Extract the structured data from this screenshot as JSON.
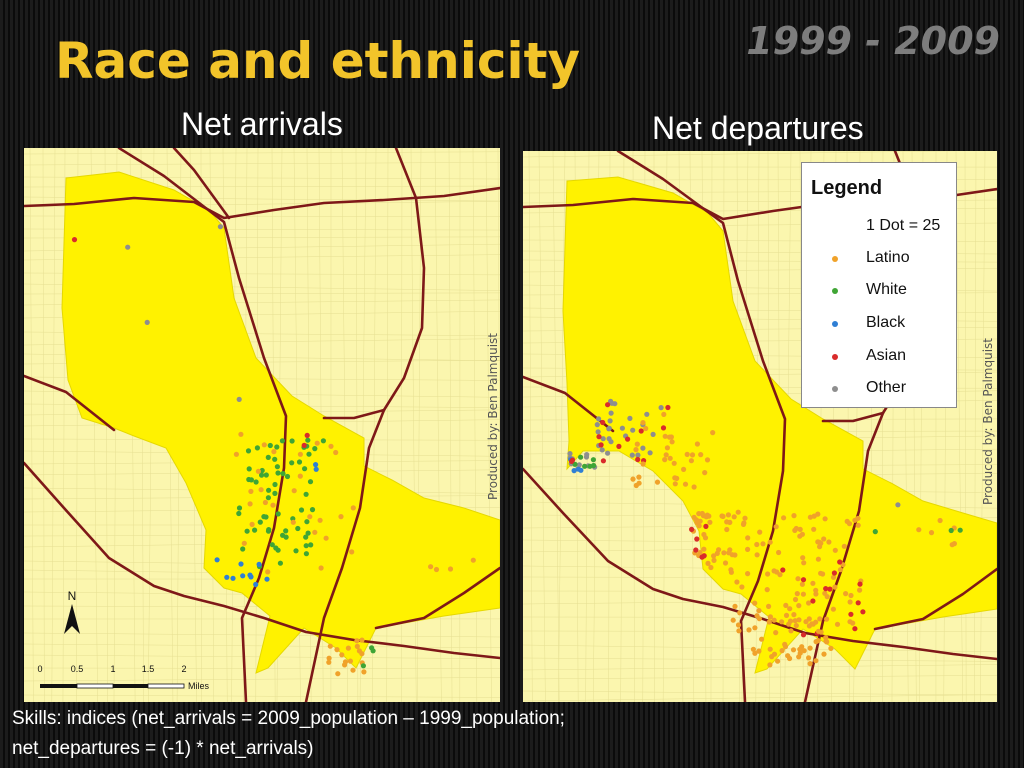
{
  "title": "Race and ethnicity",
  "years": "1999 - 2009",
  "panels": {
    "left": {
      "title": "Net arrivals",
      "credit": "Produced by: Ben Palmquist"
    },
    "right": {
      "title": "Net departures",
      "credit": "Produced by: Ben Palmquist"
    }
  },
  "legend": {
    "title": "Legend",
    "scale": "1 Dot = 25",
    "items": [
      {
        "label": "Latino",
        "color": "#f0a22a"
      },
      {
        "label": "White",
        "color": "#3fa535"
      },
      {
        "label": "Black",
        "color": "#2f7fd4"
      },
      {
        "label": "Asian",
        "color": "#d92b2b"
      },
      {
        "label": "Other",
        "color": "#8e8e8e"
      }
    ]
  },
  "map_labels": {
    "north": "N",
    "scale_ticks": [
      "0",
      "0.5",
      "1",
      "1.5",
      "2"
    ],
    "scale_unit": "Miles"
  },
  "colors": {
    "region_fill": "#fff200",
    "background_fill": "#fbf6ae",
    "highway": "#7e1818"
  },
  "footer": {
    "line1": "Skills: indices (net_arrivals = 2009_population – 1999_population;",
    "line2": "net_departures = (-1) * net_arrivals)"
  }
}
